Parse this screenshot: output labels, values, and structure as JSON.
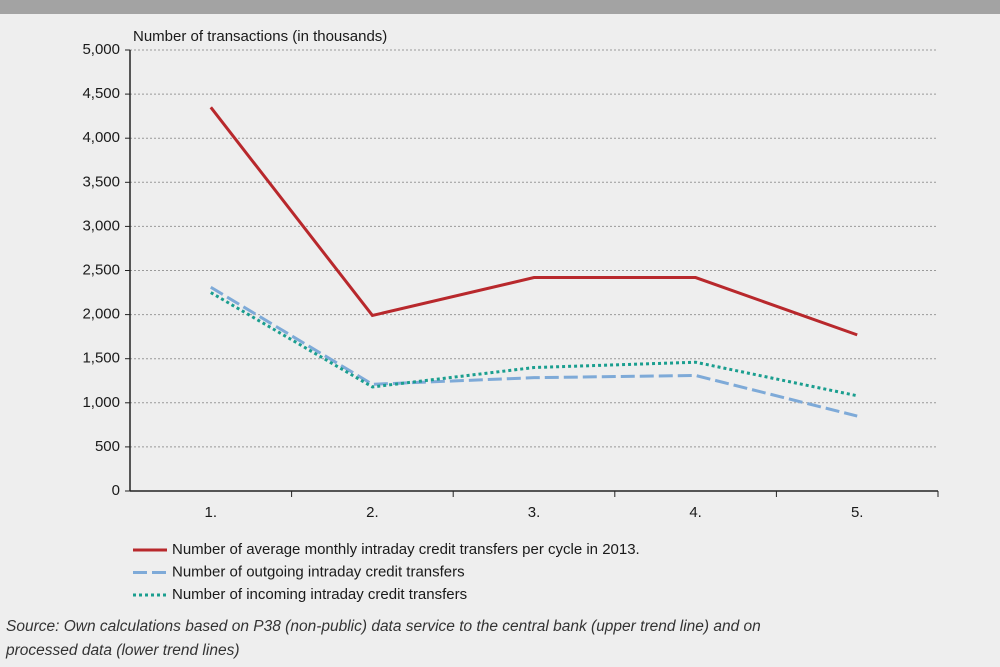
{
  "chart_data": {
    "type": "line",
    "ylabel": "Number of transactions (in thousands)",
    "categories": [
      "1.",
      "2.",
      "3.",
      "4.",
      "5."
    ],
    "series": [
      {
        "name": "Number of average monthly intraday credit transfers per cycle in 2013.",
        "color": "#b8282c",
        "style": "solid",
        "values": [
          4350,
          1990,
          2420,
          2420,
          1770
        ]
      },
      {
        "name": "Number of outgoing intraday credit transfers",
        "color": "#7eaad8",
        "style": "dashed",
        "values": [
          2310,
          1210,
          1285,
          1310,
          850
        ]
      },
      {
        "name": "Number of incoming intraday credit transfers",
        "color": "#1a9e8f",
        "style": "dotted",
        "values": [
          2250,
          1180,
          1400,
          1460,
          1080
        ]
      }
    ],
    "ylim": [
      0,
      5000
    ],
    "yticks": [
      0,
      500,
      {
        "value": 1000,
        "label": "1,000"
      },
      {
        "value": 1500,
        "label": "1,500"
      },
      {
        "value": 2000,
        "label": "2,000"
      },
      {
        "value": 2500,
        "label": "2,500"
      },
      {
        "value": 3000,
        "label": "3,000"
      },
      {
        "value": 3500,
        "label": "3,500"
      },
      {
        "value": 4000,
        "label": "4,000"
      },
      {
        "value": 4500,
        "label": "4,500"
      },
      {
        "value": 5000,
        "label": "5,000"
      }
    ],
    "grid": true,
    "source": [
      "Source: Own calculations based on P38 (non-public) data service to the central bank (upper trend line) and on",
      "processed data (lower trend lines)"
    ]
  }
}
